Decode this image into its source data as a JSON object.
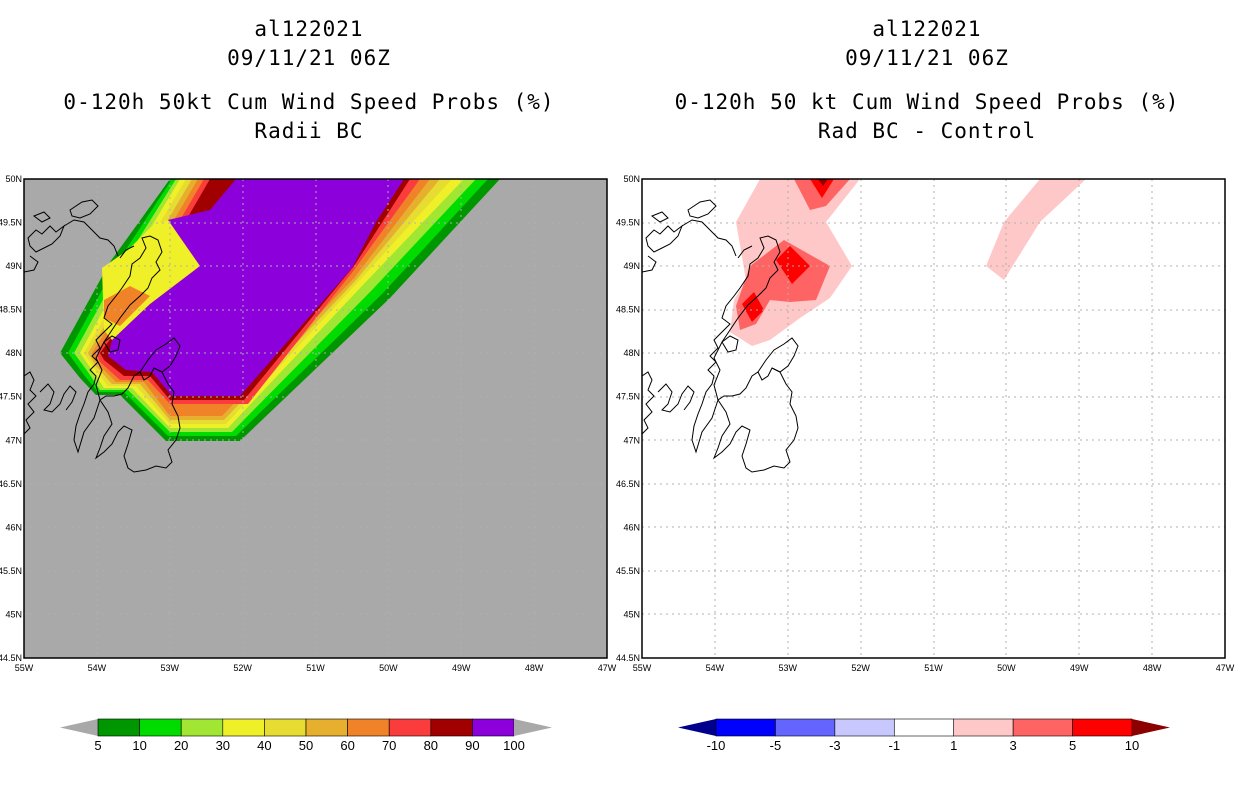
{
  "left": {
    "storm_id": "al122021",
    "datetime": "09/11/21 06Z",
    "product": "0-120h 50kt Cum Wind Speed Probs (%)",
    "subtitle": "Radii BC"
  },
  "right": {
    "storm_id": "al122021",
    "datetime": "09/11/21 06Z",
    "product": "0-120h 50 kt Cum Wind Speed Probs (%)",
    "subtitle": "Rad BC - Control"
  },
  "colors": {
    "land_background": "#a9a9a9",
    "grid": "#b0b0b0",
    "coast": "#000000"
  },
  "chart_data": [
    {
      "type": "heatmap",
      "title": "0-120h 50kt Cum Wind Speed Probs (%) - Radii BC",
      "x_ticks": [
        "55W",
        "54W",
        "53W",
        "52W",
        "51W",
        "50W",
        "49W",
        "48W",
        "47W"
      ],
      "y_ticks": [
        "50N",
        "49.5N",
        "49N",
        "48.5N",
        "48N",
        "47.5N",
        "47N",
        "46.5N",
        "46N",
        "45.5N",
        "45N",
        "44.5N"
      ],
      "xlim": [
        -55,
        -47
      ],
      "ylim": [
        44.5,
        50
      ],
      "contour_levels": [
        5,
        10,
        20,
        30,
        40,
        50,
        60,
        70,
        80,
        90,
        100
      ],
      "level_colors": [
        "#009600",
        "#00dc00",
        "#a0e632",
        "#f0f028",
        "#e6dc32",
        "#e6af2d",
        "#f08228",
        "#fa3c3c",
        "#a00000",
        "#8c00dc"
      ],
      "swath_description": "probability swath from SW near 54.4W 48N extending NE past 48.5W 50N; interior 90-100%"
    },
    {
      "type": "heatmap",
      "title": "0-120h 50 kt Cum Wind Speed Probs (%) - Rad BC - Control",
      "x_ticks": [
        "55W",
        "54W",
        "53W",
        "52W",
        "51W",
        "50W",
        "49W",
        "48W",
        "47W"
      ],
      "y_ticks": [
        "50N",
        "49.5N",
        "49N",
        "48.5N",
        "48N",
        "47.5N",
        "47N",
        "46.5N",
        "46N",
        "45.5N",
        "45N",
        "44.5N"
      ],
      "xlim": [
        -55,
        -47
      ],
      "ylim": [
        44.5,
        50
      ],
      "contour_levels": [
        -10,
        -5,
        -3,
        -1,
        1,
        3,
        5,
        10
      ],
      "level_colors": [
        "#00008c",
        "#0000ff",
        "#6464ff",
        "#c8c8ff",
        "#ffffff",
        "#ffc8c8",
        "#ff6464",
        "#ff0000",
        "#8c0000"
      ],
      "features": [
        {
          "lon": -52.5,
          "lat": 50.0,
          "max_diff": 10
        },
        {
          "lon": -53.0,
          "lat": 49.0,
          "max_diff": 5
        },
        {
          "lon": -53.5,
          "lat": 48.5,
          "max_diff": 5
        },
        {
          "lon": -49.8,
          "lat": 49.2,
          "max_diff": 1
        }
      ]
    }
  ],
  "colorbar_left": {
    "labels": [
      "5",
      "10",
      "20",
      "30",
      "40",
      "50",
      "60",
      "70",
      "80",
      "90",
      "100"
    ],
    "colors": [
      "#009600",
      "#00dc00",
      "#a0e632",
      "#f0f028",
      "#e6dc32",
      "#e6af2d",
      "#f08228",
      "#fa3c3c",
      "#a00000",
      "#8c00dc"
    ],
    "under_color": "#a9a9a9",
    "over_color": "#a9a9a9"
  },
  "colorbar_right": {
    "labels": [
      "-10",
      "-5",
      "-3",
      "-1",
      "1",
      "3",
      "5",
      "10"
    ],
    "colors": [
      "#0000ff",
      "#6464ff",
      "#c8c8ff",
      "#ffffff",
      "#ffc8c8",
      "#ff6464",
      "#ff0000"
    ],
    "under_color": "#00008c",
    "over_color": "#8c0000"
  }
}
